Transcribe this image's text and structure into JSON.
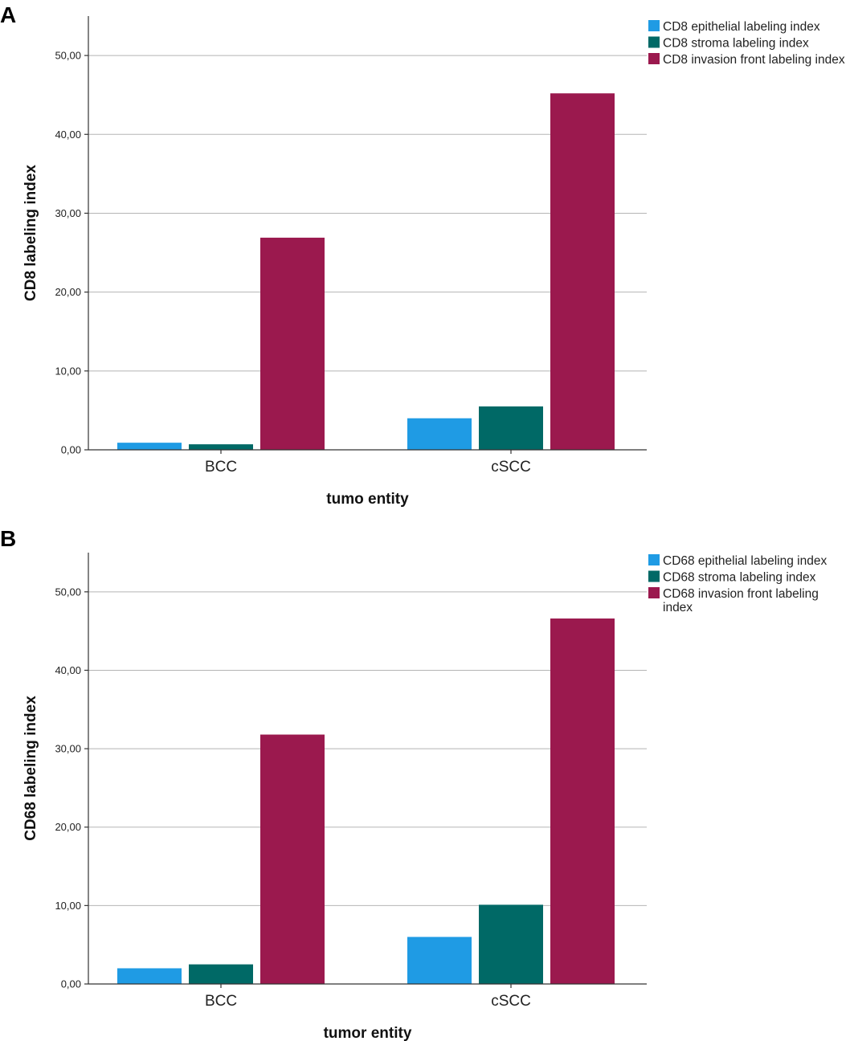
{
  "colors": {
    "epithelial": "#1f9be4",
    "stroma": "#006966",
    "invasion": "#9b194e"
  },
  "chart_data": [
    {
      "panel": "A",
      "type": "bar",
      "title": "",
      "categories": [
        "BCC",
        "cSCC"
      ],
      "series": [
        {
          "name": "CD8 epithelial labeling index",
          "key": "epithelial",
          "values": [
            0.9,
            4.0
          ]
        },
        {
          "name": "CD8 stroma labeling index",
          "key": "stroma",
          "values": [
            0.7,
            5.5
          ]
        },
        {
          "name": "CD8 invasion front labeling index",
          "key": "invasion",
          "values": [
            26.9,
            45.2
          ]
        }
      ],
      "legend_lines": [
        [
          "CD8 epithelial labeling index"
        ],
        [
          "CD8 stroma labeling index"
        ],
        [
          "CD8 invasion front labeling index"
        ]
      ],
      "xlabel": "tumo entity",
      "ylabel": "CD8 labeling index",
      "ylim": [
        0,
        55
      ],
      "yticks": [
        0,
        10,
        20,
        30,
        40,
        50
      ],
      "ytick_labels": [
        "0,00",
        "10,00",
        "20,00",
        "30,00",
        "40,00",
        "50,00"
      ],
      "grid": true,
      "legend_position": "top-right"
    },
    {
      "panel": "B",
      "type": "bar",
      "title": "",
      "categories": [
        "BCC",
        "cSCC"
      ],
      "series": [
        {
          "name": "CD68 epithelial labeling index",
          "key": "epithelial",
          "values": [
            2.0,
            6.0
          ]
        },
        {
          "name": "CD68 stroma labeling index",
          "key": "stroma",
          "values": [
            2.5,
            10.1
          ]
        },
        {
          "name": "CD68 invasion front labeling index",
          "key": "invasion",
          "values": [
            31.8,
            46.6
          ]
        }
      ],
      "legend_lines": [
        [
          "CD68 epithelial labeling index"
        ],
        [
          "CD68 stroma labeling index"
        ],
        [
          "CD68 invasion front labeling",
          "index"
        ]
      ],
      "xlabel": "tumor entity",
      "ylabel": "CD68 labeling index",
      "ylim": [
        0,
        55
      ],
      "yticks": [
        0,
        10,
        20,
        30,
        40,
        50
      ],
      "ytick_labels": [
        "0,00",
        "10,00",
        "20,00",
        "30,00",
        "40,00",
        "50,00"
      ],
      "grid": true,
      "legend_position": "top-right"
    }
  ]
}
